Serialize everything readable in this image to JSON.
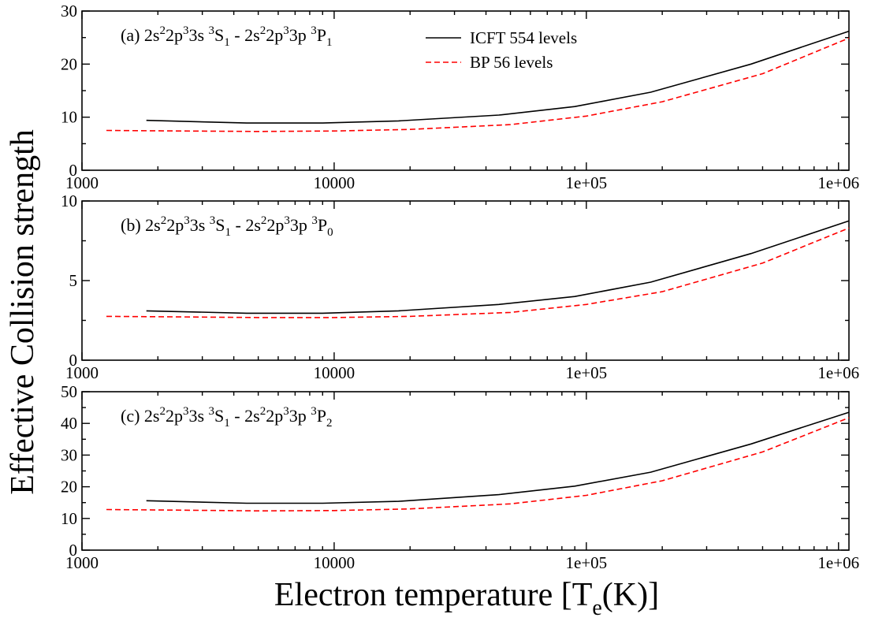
{
  "chart_data": {
    "type": "line",
    "xscale": "log",
    "xlim": [
      1000,
      1100000
    ],
    "xticks": [
      {
        "value": 1000,
        "label": "1000"
      },
      {
        "value": 10000,
        "label": "10000"
      },
      {
        "value": 100000,
        "label": "1e+05"
      },
      {
        "value": 1000000,
        "label": "1e+06"
      }
    ],
    "xlabel": {
      "main": "Electron temperature [T",
      "sub": "e",
      "tail": "(K)]"
    },
    "ylabel": "Effective Collision strength",
    "legend": {
      "placement": "top-center of panel (a)",
      "entries": [
        {
          "text": "ICFT 554 levels",
          "color": "#000000",
          "style": "solid"
        },
        {
          "text": "BP 56 levels",
          "color": "#ff0000",
          "style": "dashed"
        }
      ]
    },
    "panels": [
      {
        "label_parts": [
          {
            "t": "(a) 2s"
          },
          {
            "t": "2",
            "pos": "sup"
          },
          {
            "t": "2p"
          },
          {
            "t": "3",
            "pos": "sup"
          },
          {
            "t": "3s "
          },
          {
            "t": "3",
            "pos": "sup"
          },
          {
            "t": "S"
          },
          {
            "t": "1",
            "pos": "sub"
          },
          {
            "t": " - 2s"
          },
          {
            "t": "2",
            "pos": "sup"
          },
          {
            "t": "2p"
          },
          {
            "t": "3",
            "pos": "sup"
          },
          {
            "t": "3p "
          },
          {
            "t": "3",
            "pos": "sup"
          },
          {
            "t": "P"
          },
          {
            "t": "1",
            "pos": "sub"
          }
        ],
        "ylim": [
          0,
          30
        ],
        "yticks": [
          {
            "value": 0,
            "label": "0"
          },
          {
            "value": 10,
            "label": "10"
          },
          {
            "value": 20,
            "label": "20"
          },
          {
            "value": 30,
            "label": "30"
          }
        ],
        "series": [
          {
            "name": "ICFT 554 levels",
            "color": "#000000",
            "dash": "none",
            "x": [
              1800,
              4500,
              9000,
              18000,
              45000,
              90000,
              180000,
              450000,
              1100000
            ],
            "y": [
              9.4,
              8.9,
              8.9,
              9.3,
              10.4,
              12.0,
              14.7,
              20.0,
              26.2
            ]
          },
          {
            "name": "BP 56 levels",
            "color": "#ff0000",
            "dash": "dashed",
            "x": [
              1250,
              2500,
              5000,
              10000,
              20000,
              50000,
              100000,
              200000,
              500000,
              1100000
            ],
            "y": [
              7.5,
              7.4,
              7.3,
              7.4,
              7.7,
              8.6,
              10.2,
              12.9,
              18.2,
              24.9
            ]
          }
        ]
      },
      {
        "label_parts": [
          {
            "t": "(b) 2s"
          },
          {
            "t": "2",
            "pos": "sup"
          },
          {
            "t": "2p"
          },
          {
            "t": "3",
            "pos": "sup"
          },
          {
            "t": "3s "
          },
          {
            "t": "3",
            "pos": "sup"
          },
          {
            "t": "S"
          },
          {
            "t": "1",
            "pos": "sub"
          },
          {
            "t": " - 2s"
          },
          {
            "t": "2",
            "pos": "sup"
          },
          {
            "t": "2p"
          },
          {
            "t": "3",
            "pos": "sup"
          },
          {
            "t": "3p "
          },
          {
            "t": "3",
            "pos": "sup"
          },
          {
            "t": "P"
          },
          {
            "t": "0",
            "pos": "sub"
          }
        ],
        "ylim": [
          0,
          10
        ],
        "yticks": [
          {
            "value": 0,
            "label": "0"
          },
          {
            "value": 5,
            "label": "5"
          },
          {
            "value": 10,
            "label": "10"
          }
        ],
        "series": [
          {
            "name": "ICFT 554 levels",
            "color": "#000000",
            "dash": "none",
            "x": [
              1800,
              4500,
              9000,
              18000,
              45000,
              90000,
              180000,
              450000,
              1100000
            ],
            "y": [
              3.1,
              2.95,
              2.95,
              3.1,
              3.5,
              4.0,
              4.9,
              6.7,
              8.75
            ]
          },
          {
            "name": "BP 56 levels",
            "color": "#ff0000",
            "dash": "dashed",
            "x": [
              1250,
              2500,
              5000,
              10000,
              20000,
              50000,
              100000,
              200000,
              500000,
              1100000
            ],
            "y": [
              2.75,
              2.72,
              2.68,
              2.68,
              2.75,
              3.0,
              3.5,
              4.3,
              6.1,
              8.3
            ]
          }
        ]
      },
      {
        "label_parts": [
          {
            "t": "(c) 2s"
          },
          {
            "t": "2",
            "pos": "sup"
          },
          {
            "t": "2p"
          },
          {
            "t": "3",
            "pos": "sup"
          },
          {
            "t": "3s "
          },
          {
            "t": "3",
            "pos": "sup"
          },
          {
            "t": "S"
          },
          {
            "t": "1",
            "pos": "sub"
          },
          {
            "t": " - 2s"
          },
          {
            "t": "2",
            "pos": "sup"
          },
          {
            "t": "2p"
          },
          {
            "t": "3",
            "pos": "sup"
          },
          {
            "t": "3p "
          },
          {
            "t": "3",
            "pos": "sup"
          },
          {
            "t": "P"
          },
          {
            "t": "2",
            "pos": "sub"
          }
        ],
        "ylim": [
          0,
          50
        ],
        "yticks": [
          {
            "value": 0,
            "label": "0"
          },
          {
            "value": 10,
            "label": "10"
          },
          {
            "value": 20,
            "label": "20"
          },
          {
            "value": 30,
            "label": "30"
          },
          {
            "value": 40,
            "label": "40"
          },
          {
            "value": 50,
            "label": "50"
          }
        ],
        "series": [
          {
            "name": "ICFT 554 levels",
            "color": "#000000",
            "dash": "none",
            "x": [
              1800,
              4500,
              9000,
              18000,
              45000,
              90000,
              180000,
              450000,
              1100000
            ],
            "y": [
              15.6,
              14.8,
              14.8,
              15.4,
              17.5,
              20.2,
              24.6,
              33.5,
              43.5
            ]
          },
          {
            "name": "BP 56 levels",
            "color": "#ff0000",
            "dash": "dashed",
            "x": [
              1250,
              2500,
              5000,
              10000,
              20000,
              50000,
              100000,
              200000,
              500000,
              1100000
            ],
            "y": [
              12.8,
              12.6,
              12.4,
              12.5,
              13.0,
              14.6,
              17.3,
              21.9,
              31.0,
              41.8
            ]
          }
        ]
      }
    ]
  }
}
